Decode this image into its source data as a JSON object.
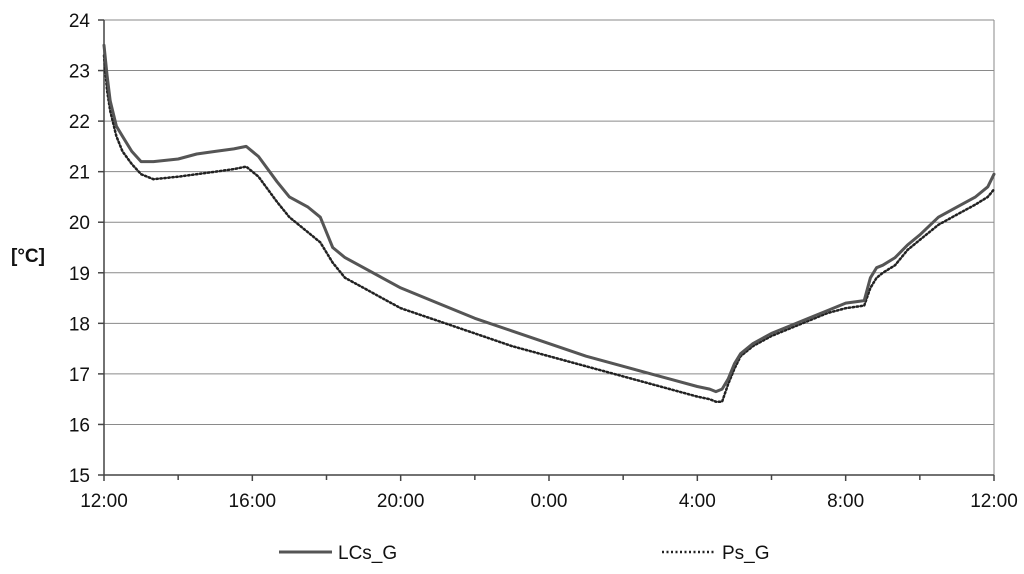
{
  "chart_data": {
    "type": "line",
    "title": "",
    "xlabel": "",
    "ylabel": "[°C]",
    "ylim": [
      15,
      24
    ],
    "xlim_hours": [
      0,
      24
    ],
    "grid": "horizontal",
    "legend_position": "bottom",
    "y_ticks": [
      "15",
      "16",
      "17",
      "18",
      "19",
      "20",
      "21",
      "22",
      "23",
      "24"
    ],
    "x_ticks": [
      "12:00",
      "16:00",
      "20:00",
      "0:00",
      "4:00",
      "8:00",
      "12:00"
    ],
    "x": [
      "12:00",
      "12:05",
      "12:10",
      "12:20",
      "12:30",
      "12:45",
      "13:00",
      "13:20",
      "14:00",
      "14:30",
      "15:00",
      "15:30",
      "15:50",
      "16:10",
      "16:40",
      "17:00",
      "17:30",
      "17:50",
      "18:10",
      "18:30",
      "19:00",
      "19:30",
      "20:00",
      "21:00",
      "22:00",
      "23:00",
      "0:00",
      "1:00",
      "2:00",
      "3:00",
      "4:00",
      "4:20",
      "4:30",
      "4:40",
      "4:50",
      "5:00",
      "5:10",
      "5:30",
      "6:00",
      "6:30",
      "7:00",
      "7:30",
      "8:00",
      "8:30",
      "8:40",
      "8:50",
      "9:00",
      "9:20",
      "9:40",
      "10:00",
      "10:30",
      "11:00",
      "11:30",
      "11:50",
      "12:00"
    ],
    "series": [
      {
        "name": "LCs_G",
        "style": "solid",
        "color": "#555555",
        "values": [
          23.5,
          22.9,
          22.4,
          21.9,
          21.7,
          21.4,
          21.2,
          21.2,
          21.25,
          21.35,
          21.4,
          21.45,
          21.5,
          21.3,
          20.8,
          20.5,
          20.3,
          20.1,
          19.5,
          19.3,
          19.1,
          18.9,
          18.7,
          18.4,
          18.1,
          17.85,
          17.6,
          17.35,
          17.15,
          16.95,
          16.75,
          16.7,
          16.65,
          16.7,
          16.9,
          17.2,
          17.4,
          17.6,
          17.8,
          17.95,
          18.1,
          18.25,
          18.4,
          18.45,
          18.9,
          19.1,
          19.15,
          19.3,
          19.55,
          19.75,
          20.1,
          20.3,
          20.5,
          20.7,
          20.95
        ]
      },
      {
        "name": "Ps_G",
        "style": "dotted",
        "color": "#222222",
        "values": [
          23.3,
          22.6,
          22.2,
          21.7,
          21.4,
          21.15,
          20.95,
          20.85,
          20.9,
          20.95,
          21.0,
          21.05,
          21.1,
          20.9,
          20.4,
          20.1,
          19.8,
          19.6,
          19.2,
          18.9,
          18.7,
          18.5,
          18.3,
          18.05,
          17.8,
          17.55,
          17.35,
          17.15,
          16.95,
          16.75,
          16.55,
          16.5,
          16.45,
          16.45,
          16.8,
          17.1,
          17.35,
          17.55,
          17.75,
          17.9,
          18.05,
          18.2,
          18.3,
          18.35,
          18.7,
          18.9,
          19.0,
          19.15,
          19.45,
          19.65,
          19.95,
          20.15,
          20.35,
          20.5,
          20.65
        ]
      }
    ]
  }
}
